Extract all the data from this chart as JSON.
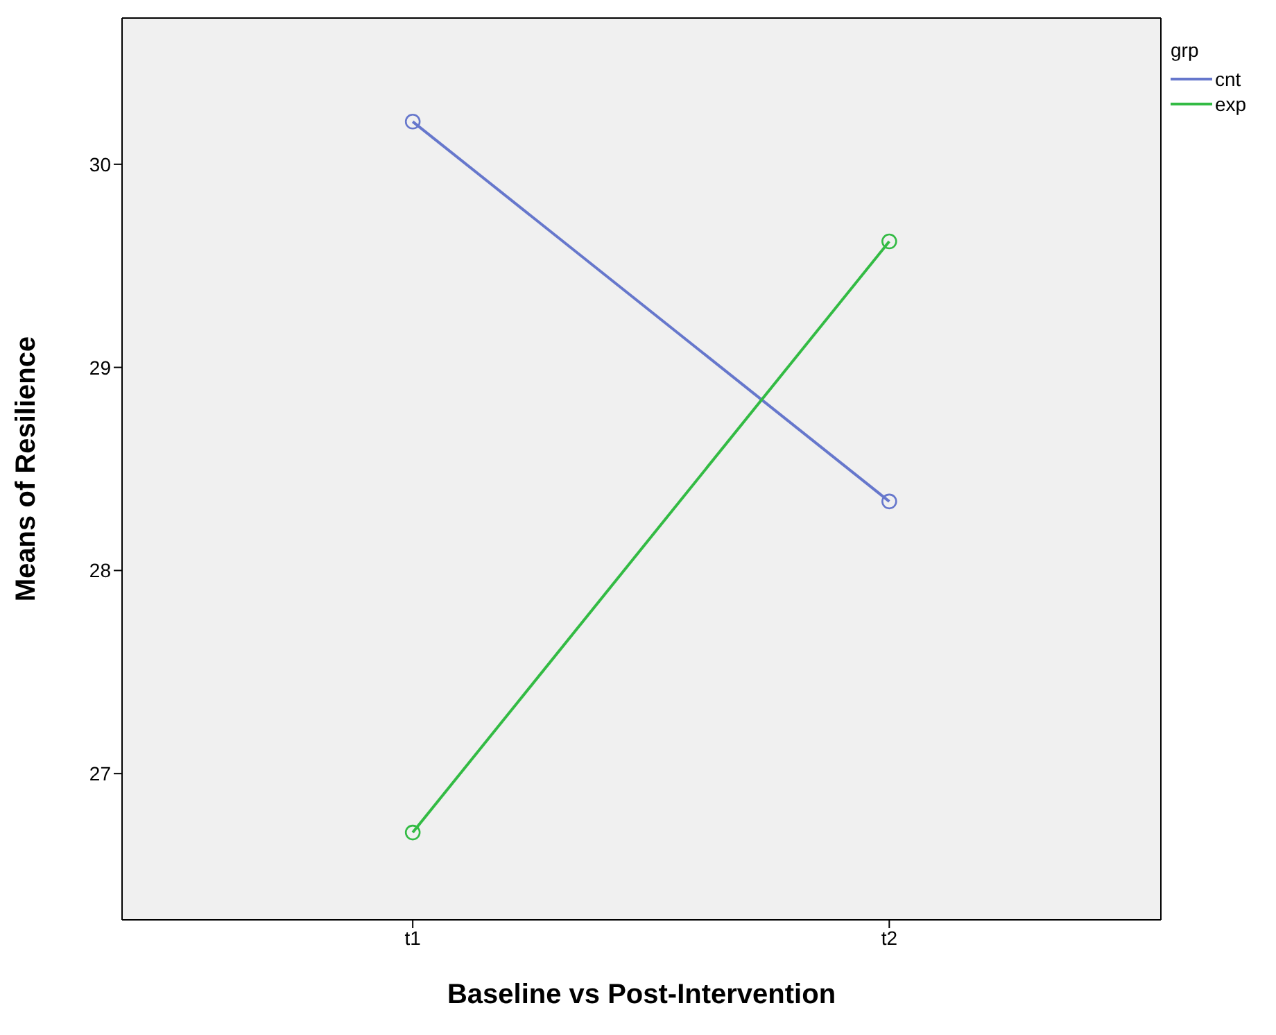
{
  "chart_data": {
    "type": "line",
    "xlabel": "Baseline vs Post-Intervention",
    "ylabel": "Means of Resilience",
    "legend_title": "grp",
    "categories": [
      "t1",
      "t2"
    ],
    "series": [
      {
        "name": "cnt",
        "color": "#6677cc",
        "values": [
          30.21,
          28.34
        ]
      },
      {
        "name": "exp",
        "color": "#33bb44",
        "values": [
          26.71,
          29.62
        ]
      }
    ],
    "ylim": [
      26.28,
      30.72
    ],
    "yticks": [
      27,
      28,
      29,
      30
    ],
    "grid": false,
    "legend": "top right",
    "marker": "circle",
    "line_style": "solid"
  }
}
